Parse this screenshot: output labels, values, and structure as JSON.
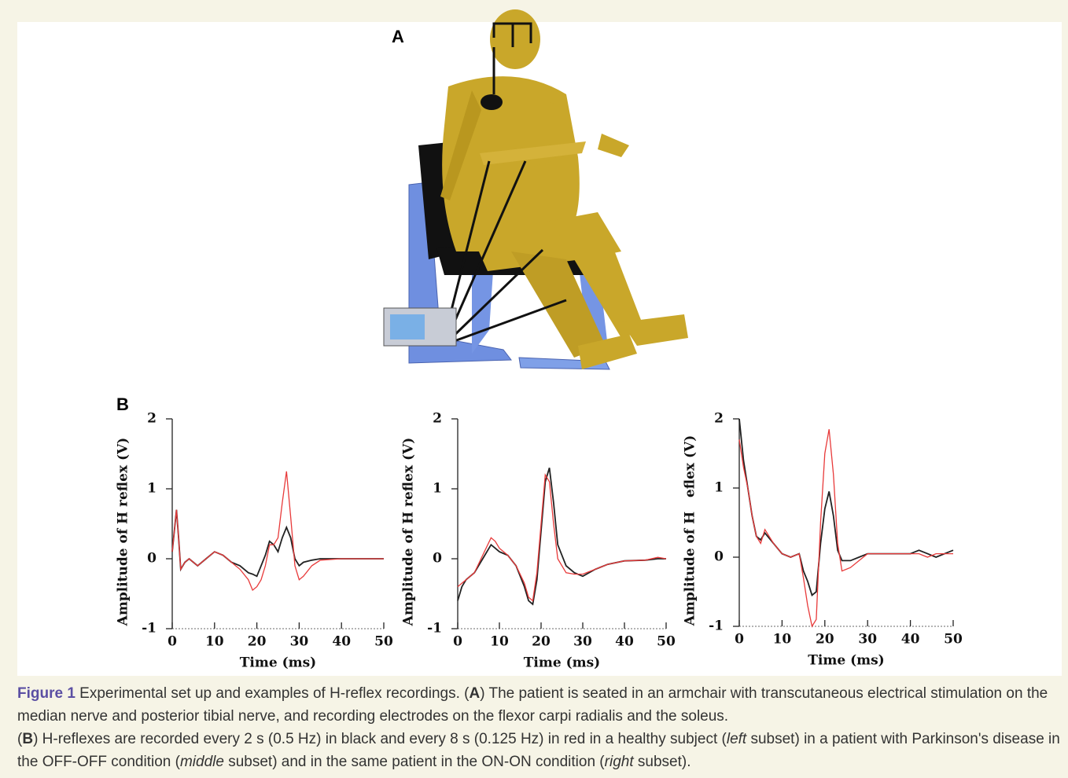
{
  "figure": {
    "panel_a": "A",
    "panel_b": "B"
  },
  "caption": {
    "label": "Figure 1",
    "part_a": [
      "  Experimental set up and examples of H-reflex recordings. (",
      "A",
      ") The patient is seated in an armchair with transcutaneous electrical stimulation on the median nerve and posterior tibial nerve, and recording electrodes on the flexor carpi radialis and the soleus."
    ],
    "part_b": [
      "(",
      "B",
      ") H-reflexes are recorded every 2 s (0.5 Hz) in black and every 8 s (0.125 Hz) in red in a healthy subject (",
      "left",
      " subset) in a patient with Parkinson's disease in the OFF-OFF condition (",
      "middle",
      " subset) and in the same patient in the ON-ON condition (",
      "right",
      " subset)."
    ]
  },
  "chart_data": [
    {
      "type": "line",
      "x_label": "Time (ms)",
      "y_label": "Amplitude of H reflex (V)",
      "x": [
        0,
        0.5,
        1,
        1.5,
        2,
        3,
        4,
        5,
        6,
        8,
        10,
        12,
        14,
        16,
        18,
        19,
        20,
        21,
        22,
        23,
        24,
        25,
        26,
        27,
        28,
        29,
        30,
        31,
        33,
        35,
        40,
        45,
        50
      ],
      "series": [
        {
          "color": "#222222",
          "values": [
            0.1,
            0.4,
            0.7,
            0.3,
            -0.15,
            -0.05,
            0,
            -0.05,
            -0.1,
            0,
            0.1,
            0.05,
            -0.05,
            -0.1,
            -0.2,
            -0.22,
            -0.25,
            -0.1,
            0.05,
            0.25,
            0.2,
            0.1,
            0.3,
            0.45,
            0.3,
            0,
            -0.1,
            -0.05,
            -0.02,
            0,
            0,
            0,
            0
          ]
        },
        {
          "color": "#e83a3a",
          "values": [
            0.1,
            0.4,
            0.7,
            0.3,
            -0.15,
            -0.05,
            0,
            -0.05,
            -0.1,
            0,
            0.1,
            0.05,
            -0.05,
            -0.15,
            -0.3,
            -0.45,
            -0.4,
            -0.3,
            -0.1,
            0.2,
            0.2,
            0.3,
            0.8,
            1.25,
            0.6,
            -0.1,
            -0.3,
            -0.25,
            -0.1,
            -0.02,
            0,
            0,
            0
          ]
        }
      ],
      "xlim": [
        0,
        50
      ],
      "xticks": [
        0,
        10,
        20,
        30,
        40,
        50
      ],
      "ylim": [
        -1,
        2
      ],
      "yticks": [
        -1,
        0,
        1,
        2
      ]
    },
    {
      "type": "line",
      "x_label": "Time (ms)",
      "y_label": "Amplitude of H reflex (V)",
      "x": [
        0,
        1,
        2,
        4,
        6,
        8,
        9,
        10,
        12,
        14,
        16,
        17,
        18,
        19,
        20,
        21,
        22,
        23,
        24,
        26,
        28,
        30,
        33,
        36,
        40,
        45,
        48,
        50
      ],
      "series": [
        {
          "color": "#222222",
          "values": [
            -0.6,
            -0.4,
            -0.3,
            -0.2,
            0,
            0.2,
            0.15,
            0.1,
            0.05,
            -0.1,
            -0.4,
            -0.6,
            -0.65,
            -0.3,
            0.4,
            1.1,
            1.3,
            0.8,
            0.2,
            -0.1,
            -0.2,
            -0.25,
            -0.15,
            -0.08,
            -0.03,
            -0.02,
            0,
            0
          ]
        },
        {
          "color": "#e83a3a",
          "values": [
            -0.4,
            -0.35,
            -0.3,
            -0.2,
            0.05,
            0.3,
            0.25,
            0.15,
            0.05,
            -0.1,
            -0.35,
            -0.55,
            -0.6,
            -0.2,
            0.5,
            1.2,
            1.1,
            0.5,
            0,
            -0.2,
            -0.22,
            -0.22,
            -0.15,
            -0.08,
            -0.03,
            -0.02,
            0.02,
            0
          ]
        }
      ],
      "xlim": [
        0,
        50
      ],
      "xticks": [
        0,
        10,
        20,
        30,
        40,
        50
      ],
      "ylim": [
        -1,
        2
      ],
      "yticks": [
        -1,
        0,
        1,
        2
      ]
    },
    {
      "type": "line",
      "x_label": "Time (ms)",
      "y_label": "Amplitude of H   eflex (V)",
      "x": [
        0,
        1,
        2,
        3,
        4,
        5,
        6,
        8,
        10,
        12,
        14,
        15,
        16,
        17,
        18,
        19,
        20,
        21,
        22,
        23,
        24,
        26,
        28,
        30,
        33,
        36,
        40,
        42,
        44,
        46,
        48,
        50
      ],
      "series": [
        {
          "color": "#222222",
          "values": [
            2,
            1.4,
            1,
            0.6,
            0.3,
            0.25,
            0.35,
            0.2,
            0.05,
            0,
            0.05,
            -0.2,
            -0.35,
            -0.55,
            -0.5,
            0.2,
            0.7,
            0.95,
            0.6,
            0.1,
            -0.05,
            -0.05,
            0,
            0.05,
            0.05,
            0.05,
            0.05,
            0.1,
            0.05,
            0,
            0.05,
            0.1
          ]
        },
        {
          "color": "#e83a3a",
          "values": [
            1.7,
            1.3,
            1,
            0.6,
            0.3,
            0.2,
            0.4,
            0.2,
            0.05,
            0,
            0.05,
            -0.3,
            -0.7,
            -1,
            -0.9,
            0.5,
            1.5,
            1.85,
            1.2,
            0.2,
            -0.2,
            -0.15,
            -0.05,
            0.05,
            0.05,
            0.05,
            0.05,
            0.05,
            0,
            0.05,
            0.05,
            0.05
          ]
        }
      ],
      "xlim": [
        0,
        50
      ],
      "xticks": [
        0,
        10,
        20,
        30,
        40,
        50
      ],
      "ylim": [
        -1,
        2
      ],
      "yticks": [
        -1,
        0,
        1,
        2
      ]
    }
  ]
}
